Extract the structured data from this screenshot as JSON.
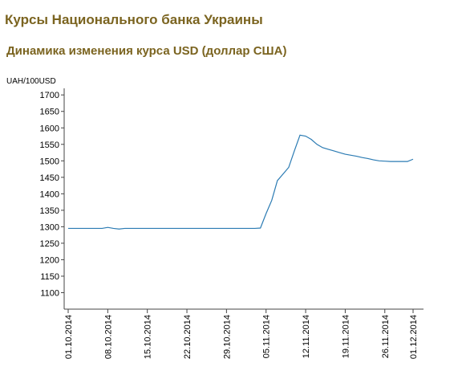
{
  "page_title": "Курсы Национального банка Украины",
  "chart_data": {
    "type": "line",
    "title": "Динамика изменения курса USD (доллар США)",
    "y_label": "UAH/100USD",
    "categories": [
      "01.10.2014",
      null,
      null,
      null,
      null,
      null,
      null,
      "08.10.2014",
      null,
      null,
      null,
      null,
      null,
      null,
      "15.10.2014",
      null,
      null,
      null,
      null,
      null,
      null,
      "22.10.2014",
      null,
      null,
      null,
      null,
      null,
      null,
      "29.10.2014",
      null,
      null,
      null,
      null,
      null,
      null,
      "05.11.2014",
      null,
      null,
      null,
      null,
      null,
      null,
      "12.11.2014",
      null,
      null,
      null,
      null,
      null,
      null,
      "19.11.2014",
      null,
      null,
      null,
      null,
      null,
      null,
      "26.11.2014",
      null,
      null,
      null,
      null,
      "01.12.2014"
    ],
    "values": [
      1295,
      1295,
      1295,
      1295,
      1295,
      1295,
      1295,
      1298,
      1295,
      1293,
      1295,
      1295,
      1295,
      1295,
      1295,
      1295,
      1295,
      1295,
      1295,
      1295,
      1295,
      1295,
      1295,
      1295,
      1295,
      1295,
      1295,
      1295,
      1295,
      1295,
      1295,
      1295,
      1295,
      1295,
      1296,
      1340,
      1380,
      1440,
      1460,
      1480,
      1530,
      1578,
      1575,
      1565,
      1550,
      1540,
      1535,
      1530,
      1525,
      1520,
      1517,
      1514,
      1510,
      1507,
      1503,
      1500,
      1499,
      1498,
      1498,
      1498,
      1498,
      1505
    ],
    "color": "#2b7bb3",
    "ylim": [
      1050,
      1720
    ],
    "yticks": [
      1100,
      1150,
      1200,
      1250,
      1300,
      1350,
      1400,
      1450,
      1500,
      1550,
      1600,
      1650,
      1700
    ]
  }
}
